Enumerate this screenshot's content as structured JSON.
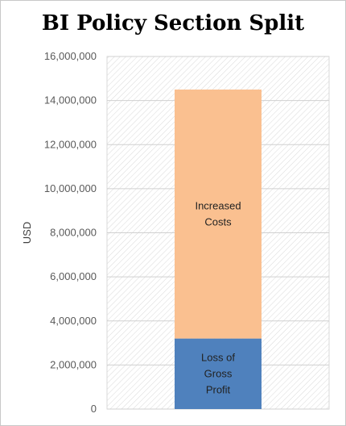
{
  "chart_data": {
    "type": "bar",
    "stacked": true,
    "title": "BI Policy Section Split",
    "xlabel": "",
    "ylabel": "USD",
    "ylim": [
      0,
      16000000
    ],
    "yticks": [
      {
        "value": 0,
        "label": "0"
      },
      {
        "value": 2000000,
        "label": "2,000,000"
      },
      {
        "value": 4000000,
        "label": "4,000,000"
      },
      {
        "value": 6000000,
        "label": "6,000,000"
      },
      {
        "value": 8000000,
        "label": "8,000,000"
      },
      {
        "value": 10000000,
        "label": "10,000,000"
      },
      {
        "value": 12000000,
        "label": "12,000,000"
      },
      {
        "value": 14000000,
        "label": "14,000,000"
      },
      {
        "value": 16000000,
        "label": "16,000,000"
      }
    ],
    "grid": true,
    "series": [
      {
        "label_lines": [
          "Loss of",
          "Gross",
          "Profit"
        ],
        "value": 3200000,
        "color": "#4f81bd"
      },
      {
        "label_lines": [
          "Increased",
          "Costs"
        ],
        "value": 11300000,
        "color": "#fac090"
      }
    ]
  }
}
